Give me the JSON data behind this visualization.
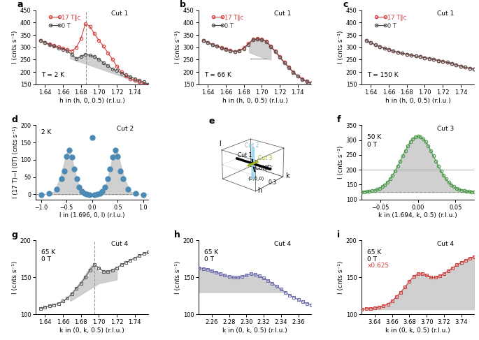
{
  "panel_a": {
    "title": "Cut 1",
    "temp_label": "T = 2 K",
    "xlabel": "h in (h, 0, 0.5) (r.l.u.)",
    "ylabel": "I (cnts s⁻¹)",
    "ylim": [
      150,
      450
    ],
    "xlim": [
      1.63,
      1.755
    ],
    "yticks": [
      150,
      200,
      250,
      300,
      350,
      400,
      450
    ],
    "xticks": [
      1.64,
      1.66,
      1.68,
      1.7,
      1.72,
      1.74
    ],
    "dashed_x": 1.686,
    "red_x": [
      1.635,
      1.64,
      1.645,
      1.65,
      1.655,
      1.66,
      1.665,
      1.67,
      1.675,
      1.68,
      1.685,
      1.69,
      1.695,
      1.7,
      1.705,
      1.71,
      1.715,
      1.72,
      1.725,
      1.73,
      1.735,
      1.74,
      1.745,
      1.75,
      1.755
    ],
    "red_y": [
      328,
      320,
      313,
      308,
      302,
      296,
      290,
      285,
      300,
      335,
      395,
      385,
      355,
      328,
      305,
      278,
      252,
      223,
      200,
      183,
      173,
      166,
      161,
      154,
      150
    ],
    "black_x": [
      1.635,
      1.64,
      1.645,
      1.65,
      1.655,
      1.66,
      1.665,
      1.67,
      1.675,
      1.68,
      1.685,
      1.69,
      1.695,
      1.7,
      1.705,
      1.71,
      1.715,
      1.72,
      1.725,
      1.73,
      1.735,
      1.74,
      1.745,
      1.75,
      1.755
    ],
    "black_y": [
      327,
      318,
      310,
      304,
      297,
      292,
      286,
      270,
      255,
      263,
      272,
      268,
      263,
      252,
      238,
      226,
      213,
      205,
      196,
      188,
      181,
      173,
      166,
      160,
      150
    ],
    "fill_x": [
      1.668,
      1.672,
      1.676,
      1.68,
      1.684,
      1.688,
      1.692,
      1.696,
      1.7,
      1.704,
      1.708,
      1.712,
      1.716,
      1.72,
      1.724,
      1.728,
      1.732,
      1.736,
      1.74,
      1.744,
      1.748,
      1.752
    ],
    "fill_top": [
      268,
      262,
      257,
      262,
      270,
      268,
      265,
      260,
      252,
      240,
      228,
      215,
      206,
      197,
      189,
      182,
      175,
      168,
      162,
      157,
      153,
      150
    ],
    "fill_base": [
      255,
      250,
      245,
      240,
      235,
      230,
      225,
      220,
      215,
      210,
      205,
      200,
      195,
      190,
      185,
      180,
      175,
      170,
      165,
      160,
      155,
      150
    ]
  },
  "panel_b": {
    "title": "Cut 1",
    "temp_label": "T = 66 K",
    "xlabel": "h in (h, 0, 0.5) (r.l.u.)",
    "ylabel": "I (cnts s⁻¹)",
    "ylim": [
      150,
      450
    ],
    "xlim": [
      1.63,
      1.755
    ],
    "yticks": [
      150,
      200,
      250,
      300,
      350,
      400,
      450
    ],
    "xticks": [
      1.64,
      1.66,
      1.68,
      1.7,
      1.72,
      1.74
    ],
    "red_x": [
      1.635,
      1.64,
      1.645,
      1.65,
      1.655,
      1.66,
      1.665,
      1.67,
      1.675,
      1.68,
      1.685,
      1.69,
      1.695,
      1.7,
      1.705,
      1.71,
      1.715,
      1.72,
      1.725,
      1.73,
      1.735,
      1.74,
      1.745,
      1.75,
      1.755
    ],
    "red_y": [
      328,
      320,
      312,
      306,
      300,
      294,
      288,
      283,
      288,
      298,
      315,
      332,
      335,
      333,
      325,
      305,
      285,
      262,
      240,
      220,
      200,
      185,
      172,
      163,
      155
    ],
    "black_x": [
      1.635,
      1.64,
      1.645,
      1.65,
      1.655,
      1.66,
      1.665,
      1.67,
      1.675,
      1.68,
      1.685,
      1.69,
      1.695,
      1.7,
      1.705,
      1.71,
      1.715,
      1.72,
      1.725,
      1.73,
      1.735,
      1.74,
      1.745,
      1.75,
      1.755
    ],
    "black_y": [
      327,
      318,
      310,
      304,
      297,
      292,
      286,
      282,
      286,
      295,
      312,
      330,
      333,
      330,
      322,
      302,
      282,
      260,
      238,
      218,
      198,
      183,
      170,
      161,
      155
    ],
    "fill_peak_x": [
      1.686,
      1.69,
      1.694,
      1.698,
      1.702,
      1.706,
      1.71
    ],
    "fill_peak_top": [
      312,
      330,
      333,
      330,
      322,
      310,
      295
    ],
    "fill_peak_base": [
      280,
      274,
      268,
      263,
      258,
      254,
      250
    ],
    "hline_y": 255,
    "hline_x1": 1.687,
    "hline_x2": 1.706
  },
  "panel_c": {
    "title": "Cut 1",
    "temp_label": "T = 150 K",
    "xlabel": "h in (h, 0, 0.5) (r.l.u.)",
    "ylabel": "I (cnts s⁻¹)",
    "ylim": [
      150,
      450
    ],
    "xlim": [
      1.63,
      1.755
    ],
    "yticks": [
      150,
      200,
      250,
      300,
      350,
      400,
      450
    ],
    "xticks": [
      1.64,
      1.66,
      1.68,
      1.7,
      1.72,
      1.74
    ],
    "red_x": [
      1.635,
      1.64,
      1.645,
      1.65,
      1.655,
      1.66,
      1.665,
      1.67,
      1.675,
      1.68,
      1.685,
      1.69,
      1.695,
      1.7,
      1.705,
      1.71,
      1.715,
      1.72,
      1.725,
      1.73,
      1.735,
      1.74,
      1.745,
      1.75,
      1.755
    ],
    "red_y": [
      327,
      318,
      310,
      303,
      296,
      291,
      285,
      280,
      276,
      272,
      268,
      265,
      262,
      258,
      255,
      251,
      247,
      243,
      239,
      234,
      229,
      224,
      219,
      215,
      212
    ],
    "black_x": [
      1.635,
      1.64,
      1.645,
      1.65,
      1.655,
      1.66,
      1.665,
      1.67,
      1.675,
      1.68,
      1.685,
      1.69,
      1.695,
      1.7,
      1.705,
      1.71,
      1.715,
      1.72,
      1.725,
      1.73,
      1.735,
      1.74,
      1.745,
      1.75,
      1.755
    ],
    "black_y": [
      327,
      318,
      310,
      303,
      296,
      291,
      285,
      280,
      276,
      272,
      268,
      265,
      262,
      258,
      255,
      251,
      247,
      243,
      239,
      234,
      229,
      224,
      219,
      215,
      212
    ]
  },
  "panel_d": {
    "title": "Cut 2",
    "temp_label": "2 K",
    "xlabel": "l in (1.696, 0, l) (r.l.u.)",
    "ylabel": "I (17 T)−I (0T) (cnts s⁻¹)",
    "ylim": [
      -15,
      200
    ],
    "xlim": [
      -1.1,
      1.1
    ],
    "yticks": [
      0,
      50,
      100,
      150,
      200
    ],
    "xticks": [
      -1.0,
      -0.5,
      0.0,
      0.5,
      1.0
    ],
    "blue_x": [
      -1.0,
      -0.85,
      -0.7,
      -0.6,
      -0.55,
      -0.5,
      -0.45,
      -0.4,
      -0.35,
      -0.3,
      -0.25,
      -0.2,
      -0.15,
      -0.1,
      -0.05,
      0.0,
      0.05,
      0.1,
      0.15,
      0.2,
      0.25,
      0.3,
      0.35,
      0.4,
      0.45,
      0.5,
      0.55,
      0.6,
      0.7,
      0.85,
      1.0
    ],
    "blue_y": [
      -2,
      3,
      15,
      45,
      68,
      110,
      128,
      107,
      73,
      45,
      20,
      8,
      3,
      0,
      -1,
      165,
      -1,
      0,
      3,
      8,
      20,
      45,
      73,
      107,
      128,
      110,
      68,
      45,
      15,
      3,
      -2
    ],
    "fill_x": [
      -0.85,
      -0.75,
      -0.65,
      -0.6,
      -0.55,
      -0.5,
      -0.45,
      -0.4,
      -0.35,
      -0.3,
      -0.25,
      -0.2,
      -0.15,
      -0.1,
      -0.05,
      0.0,
      0.05,
      0.1,
      0.15,
      0.2,
      0.25,
      0.3,
      0.35,
      0.4,
      0.45,
      0.5,
      0.55,
      0.6,
      0.65,
      0.75,
      0.85
    ],
    "fill_y": [
      3,
      8,
      38,
      62,
      90,
      120,
      128,
      107,
      73,
      45,
      20,
      8,
      3,
      1,
      0,
      0,
      0,
      1,
      3,
      8,
      20,
      45,
      73,
      107,
      128,
      120,
      90,
      62,
      38,
      8,
      3
    ]
  },
  "panel_f": {
    "title": "Cut 3",
    "temp_label": "50 K\n0 T",
    "xlabel": "k in (1.694, k, 0.5) (r.l.u.)",
    "ylabel": "I (cnts s⁻¹)",
    "ylim": [
      100,
      350
    ],
    "xlim": [
      -0.075,
      0.075
    ],
    "yticks": [
      100,
      150,
      200,
      250,
      300,
      350
    ],
    "xticks": [
      -0.05,
      0.0,
      0.05
    ],
    "green_sigma": 0.022,
    "green_amp": 188,
    "green_base": 125,
    "hline_y": 200,
    "dashed_y": 125
  },
  "panel_g": {
    "title": "Cut 4",
    "temp_label": "65 K\n0 T",
    "xlabel": "k in (0, k, 0.5) (r.l.u.)",
    "ylabel": "I (cnts s⁻¹)",
    "ylim": [
      100,
      200
    ],
    "xlim": [
      1.63,
      1.755
    ],
    "yticks": [
      100,
      150,
      200
    ],
    "xticks": [
      1.64,
      1.66,
      1.68,
      1.7,
      1.72,
      1.74
    ],
    "dashed_x": 1.695,
    "gray_x": [
      1.635,
      1.64,
      1.645,
      1.65,
      1.655,
      1.66,
      1.665,
      1.67,
      1.675,
      1.68,
      1.685,
      1.69,
      1.695,
      1.7,
      1.705,
      1.71,
      1.715,
      1.72,
      1.725,
      1.73,
      1.735,
      1.74,
      1.745,
      1.75,
      1.755
    ],
    "gray_y": [
      108,
      110,
      112,
      113,
      115,
      118,
      122,
      128,
      135,
      142,
      150,
      160,
      167,
      163,
      158,
      158,
      160,
      163,
      167,
      170,
      173,
      176,
      179,
      182,
      184
    ],
    "fill_x": [
      1.668,
      1.672,
      1.676,
      1.68,
      1.684,
      1.688,
      1.692,
      1.696,
      1.7,
      1.704,
      1.708,
      1.712,
      1.716,
      1.72
    ],
    "fill_top": [
      128,
      133,
      139,
      145,
      152,
      160,
      167,
      163,
      158,
      157,
      157,
      158,
      160,
      162
    ],
    "fill_base": [
      118,
      121,
      124,
      127,
      130,
      133,
      136,
      139,
      142,
      143,
      144,
      145,
      146,
      147
    ]
  },
  "panel_h": {
    "title": "Cut 4",
    "temp_label": "65 K\n0 T",
    "xlabel": "k in (0, k, 0.5) (r.l.u.)",
    "ylabel": "I (cnts s⁻¹)",
    "ylim": [
      100,
      200
    ],
    "xlim": [
      2.245,
      2.375
    ],
    "yticks": [
      100,
      150,
      200
    ],
    "xticks": [
      2.26,
      2.28,
      2.3,
      2.32,
      2.34,
      2.36
    ],
    "blue_x": [
      2.245,
      2.25,
      2.255,
      2.26,
      2.265,
      2.27,
      2.275,
      2.28,
      2.285,
      2.29,
      2.295,
      2.3,
      2.305,
      2.31,
      2.315,
      2.32,
      2.325,
      2.33,
      2.335,
      2.34,
      2.345,
      2.35,
      2.355,
      2.36,
      2.365,
      2.37,
      2.375
    ],
    "blue_y": [
      163,
      162,
      161,
      159,
      157,
      155,
      153,
      151,
      150,
      150,
      151,
      153,
      155,
      154,
      152,
      149,
      146,
      142,
      138,
      134,
      130,
      126,
      123,
      120,
      117,
      115,
      113
    ],
    "fill_base": 130
  },
  "panel_i": {
    "title": "Cut 4",
    "temp_label": "65 K\n0 T",
    "scale_label": "x0.625",
    "xlabel": "k in (0, k, 0.5) (r.l.u.)",
    "ylabel": "I (cnts s⁻¹)",
    "ylim": [
      100,
      200
    ],
    "xlim": [
      3.625,
      3.755
    ],
    "yticks": [
      100,
      150,
      200
    ],
    "xticks": [
      3.64,
      3.66,
      3.68,
      3.7,
      3.72,
      3.74
    ],
    "red_x": [
      3.625,
      3.63,
      3.635,
      3.64,
      3.645,
      3.65,
      3.655,
      3.66,
      3.665,
      3.67,
      3.675,
      3.68,
      3.685,
      3.69,
      3.695,
      3.7,
      3.705,
      3.71,
      3.715,
      3.72,
      3.725,
      3.73,
      3.735,
      3.74,
      3.745,
      3.75,
      3.755
    ],
    "red_y": [
      107,
      108,
      108,
      109,
      110,
      112,
      114,
      118,
      124,
      130,
      137,
      145,
      151,
      155,
      155,
      153,
      150,
      150,
      152,
      155,
      159,
      163,
      167,
      170,
      173,
      176,
      178
    ],
    "fill_base": 107
  },
  "colors": {
    "red": "#d44040",
    "black": "#505050",
    "blue": "#4a8ab5",
    "blue_sq": "#7070b0",
    "green": "#4a9a4a",
    "gray_fill": "#c8c8c8",
    "dashed": "#888888"
  }
}
